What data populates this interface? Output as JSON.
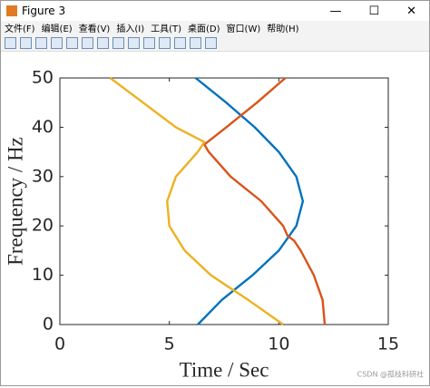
{
  "window": {
    "title": "Figure 3",
    "menu": [
      "文件(F)",
      "编辑(E)",
      "查看(V)",
      "插入(I)",
      "工具(T)",
      "桌面(D)",
      "窗口(W)",
      "帮助(H)"
    ],
    "watermark": "CSDN @孤枝科研社"
  },
  "chart_data": {
    "type": "line",
    "xlabel": "Time / Sec",
    "ylabel": "Frequency / Hz",
    "xlim": [
      0,
      15
    ],
    "ylim": [
      0,
      50
    ],
    "xticks": [
      0,
      5,
      10,
      15
    ],
    "yticks": [
      0,
      10,
      20,
      30,
      40,
      50
    ],
    "series": [
      {
        "color": "#0072BD",
        "x": [
          6.3,
          7.4,
          8.8,
          10.0,
          10.8,
          11.1,
          10.8,
          10.0,
          8.9,
          7.6,
          6.2
        ],
        "values": [
          0,
          5,
          10,
          15,
          20,
          25,
          30,
          35,
          40,
          45,
          50
        ]
      },
      {
        "color": "#D95319",
        "x": [
          12.1,
          12.0,
          11.6,
          11.0,
          10.7,
          10.4,
          10.2,
          9.2,
          7.8,
          6.8,
          6.6,
          7.6,
          9.0,
          10.3
        ],
        "values": [
          0,
          5,
          10,
          15,
          17,
          18,
          20,
          25,
          30,
          35,
          36.5,
          40,
          45,
          50
        ]
      },
      {
        "color": "#EDB120",
        "x": [
          10.2,
          8.6,
          6.9,
          5.7,
          5.0,
          4.9,
          5.3,
          6.3,
          6.6,
          5.3,
          3.8,
          2.3
        ],
        "values": [
          0,
          5,
          10,
          15,
          20,
          25,
          30,
          35,
          37,
          40,
          45,
          50
        ]
      }
    ]
  }
}
